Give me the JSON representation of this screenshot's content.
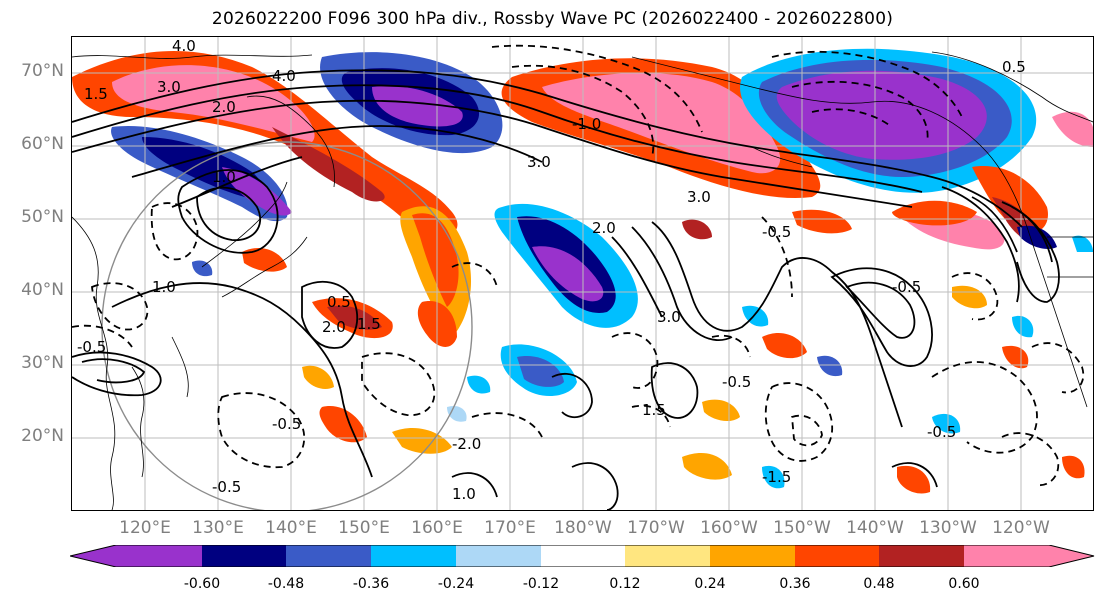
{
  "title": "2026022200 F096 300 hPa div., Rossby Wave PC (2026022400 - 2026022800)",
  "map": {
    "projection": "equirectangular",
    "lon_range": [
      110,
      250
    ],
    "lat_range": [
      10,
      75
    ],
    "gridlines": true,
    "coastlines": true,
    "lat_labels": [
      "70°N",
      "60°N",
      "50°N",
      "40°N",
      "30°N",
      "20°N"
    ],
    "lon_labels": [
      "120°E",
      "130°E",
      "140°E",
      "150°E",
      "160°E",
      "170°E",
      "180°W",
      "170°W",
      "160°W",
      "150°W",
      "140°W",
      "130°W",
      "120°W"
    ],
    "contour_labels": [
      "4.0",
      "3.0",
      "2.0",
      "1.5",
      "1.0",
      "0.5",
      "-0.5",
      "-1.0",
      "-1.5",
      "-2.0"
    ]
  },
  "colorbar": {
    "orientation": "horizontal",
    "extend": "both",
    "tick_labels": [
      "-0.60",
      "-0.48",
      "-0.36",
      "-0.24",
      "-0.12",
      "0.12",
      "0.24",
      "0.36",
      "0.48",
      "0.60"
    ],
    "colors": [
      "#9932CC",
      "#000080",
      "#3A5BC7",
      "#00BFFF",
      "#ADD8F6",
      "#FFFFFF",
      "#FFE680",
      "#FFA500",
      "#FF4500",
      "#B22222",
      "#FF82AB"
    ]
  }
}
